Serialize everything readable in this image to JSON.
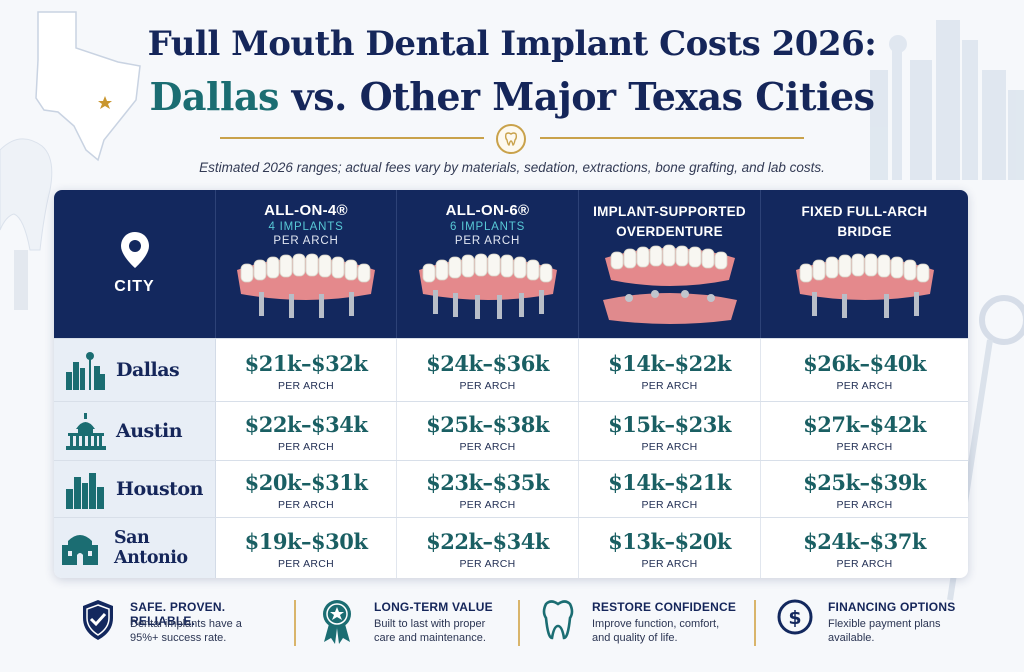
{
  "title": {
    "line1": "Full Mouth Dental Implant Costs 2026:",
    "line2_highlight": "Dallas",
    "line2_rest": " vs. Other Major Texas Cities"
  },
  "subtitle": "Estimated 2026 ranges; actual fees vary by materials, sedation, extractions, bone grafting, and lab costs.",
  "icons": {
    "divider": "tooth-icon",
    "city_header": "map-pin-icon"
  },
  "colors": {
    "navy": "#13285e",
    "teal": "#1b6d72",
    "gold": "#c9a24b",
    "accent_cyan": "#58c9d6"
  },
  "table": {
    "city_header": "CITY",
    "columns": [
      {
        "title": "ALL-ON-4®",
        "sub1": "4 IMPLANTS",
        "sub2": "PER ARCH"
      },
      {
        "title": "ALL-ON-6®",
        "sub1": "6 IMPLANTS",
        "sub2": "PER ARCH"
      },
      {
        "title_line1": "IMPLANT-SUPPORTED",
        "title_line2": "OVERDENTURE"
      },
      {
        "title_line1": "FIXED FULL-ARCH",
        "title_line2": "BRIDGE"
      }
    ],
    "per_label": "PER ARCH",
    "rows": [
      {
        "city": "Dallas",
        "icon": "dallas-skyline-icon",
        "prices": [
          "$21k–$32k",
          "$24k–$36k",
          "$14k–$22k",
          "$26k–$40k"
        ]
      },
      {
        "city": "Austin",
        "icon": "capitol-icon",
        "prices": [
          "$22k–$34k",
          "$25k–$38k",
          "$15k–$23k",
          "$27k–$42k"
        ]
      },
      {
        "city": "Houston",
        "icon": "houston-skyline-icon",
        "prices": [
          "$20k–$31k",
          "$23k–$35k",
          "$14k–$21k",
          "$25k–$39k"
        ]
      },
      {
        "city": "San Antonio",
        "icon": "alamo-icon",
        "prices": [
          "$19k–$30k",
          "$22k–$34k",
          "$13k–$20k",
          "$24k–$37k"
        ]
      }
    ]
  },
  "features": [
    {
      "icon": "shield-check-icon",
      "title": "SAFE. PROVEN. RELIABLE.",
      "desc1": "Dental implants have a",
      "desc2": "95%+ success rate."
    },
    {
      "icon": "award-ribbon-icon",
      "title": "LONG-TERM VALUE",
      "desc1": "Built to last with proper",
      "desc2": "care and maintenance."
    },
    {
      "icon": "tooth-outline-icon",
      "title": "RESTORE CONFIDENCE",
      "desc1": "Improve function, comfort,",
      "desc2": "and quality of life."
    },
    {
      "icon": "dollar-coin-icon",
      "title": "FINANCING OPTIONS",
      "desc1": "Flexible payment plans",
      "desc2": "available."
    }
  ]
}
